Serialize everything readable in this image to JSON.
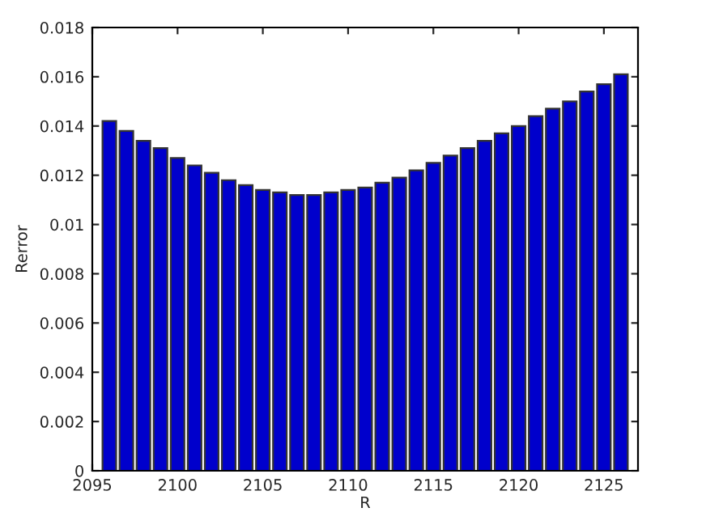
{
  "chart_data": {
    "type": "bar",
    "xlabel": "R",
    "ylabel": "Rerror",
    "x": [
      2096,
      2097,
      2098,
      2099,
      2100,
      2101,
      2102,
      2103,
      2104,
      2105,
      2106,
      2107,
      2108,
      2109,
      2110,
      2111,
      2112,
      2113,
      2114,
      2115,
      2116,
      2117,
      2118,
      2119,
      2120,
      2121,
      2122,
      2123,
      2124,
      2125,
      2126
    ],
    "values": [
      0.0142,
      0.0138,
      0.0134,
      0.0131,
      0.0127,
      0.0124,
      0.0121,
      0.0118,
      0.0116,
      0.0114,
      0.0113,
      0.0112,
      0.0112,
      0.0113,
      0.0114,
      0.0115,
      0.0117,
      0.0119,
      0.0122,
      0.0125,
      0.0128,
      0.0131,
      0.0134,
      0.0137,
      0.014,
      0.0144,
      0.0147,
      0.015,
      0.0154,
      0.0157,
      0.0161
    ],
    "color": "#0000cc",
    "xlim": [
      2095,
      2127
    ],
    "xticks": [
      2095,
      2100,
      2105,
      2110,
      2115,
      2120,
      2125
    ],
    "ylim": [
      0,
      0.018
    ],
    "yticks": [
      0,
      0.002,
      0.004,
      0.006,
      0.008,
      0.01,
      0.012,
      0.014,
      0.016,
      0.018
    ],
    "grid": false,
    "legend": false
  }
}
